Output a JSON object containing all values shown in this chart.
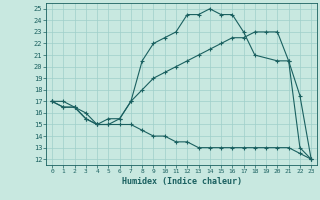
{
  "xlabel": "Humidex (Indice chaleur)",
  "bg_color": "#c8e8e0",
  "grid_color": "#9fcfca",
  "line_color": "#1a6060",
  "xlim": [
    -0.5,
    23.5
  ],
  "ylim": [
    11.5,
    25.5
  ],
  "xticks": [
    0,
    1,
    2,
    3,
    4,
    5,
    6,
    7,
    8,
    9,
    10,
    11,
    12,
    13,
    14,
    15,
    16,
    17,
    18,
    19,
    20,
    21,
    22,
    23
  ],
  "yticks": [
    12,
    13,
    14,
    15,
    16,
    17,
    18,
    19,
    20,
    21,
    22,
    23,
    24,
    25
  ],
  "line1_x": [
    0,
    1,
    2,
    3,
    4,
    5,
    6,
    7,
    8,
    9,
    10,
    11,
    12,
    13,
    14,
    15,
    16,
    17,
    18,
    20,
    21,
    22,
    23
  ],
  "line1_y": [
    17,
    17,
    16.5,
    15.5,
    15,
    15.5,
    15.5,
    17,
    20.5,
    22,
    22.5,
    23,
    24.5,
    24.5,
    25,
    24.5,
    24.5,
    23,
    21,
    20.5,
    20.5,
    13,
    12
  ],
  "line2_x": [
    0,
    1,
    2,
    3,
    4,
    5,
    6,
    7,
    8,
    9,
    10,
    11,
    12,
    13,
    14,
    15,
    16,
    17,
    18,
    19,
    20,
    21,
    22,
    23
  ],
  "line2_y": [
    17,
    16.5,
    16.5,
    16,
    15,
    15,
    15.5,
    17,
    18,
    19,
    19.5,
    20,
    20.5,
    21,
    21.5,
    22,
    22.5,
    22.5,
    23,
    23,
    23,
    20.5,
    17.5,
    12
  ],
  "line3_x": [
    0,
    1,
    2,
    3,
    4,
    5,
    6,
    7,
    8,
    9,
    10,
    11,
    12,
    13,
    14,
    15,
    16,
    17,
    18,
    19,
    20,
    21,
    22,
    23
  ],
  "line3_y": [
    17,
    16.5,
    16.5,
    15.5,
    15,
    15,
    15,
    15,
    14.5,
    14,
    14,
    13.5,
    13.5,
    13,
    13,
    13,
    13,
    13,
    13,
    13,
    13,
    13,
    12.5,
    12
  ]
}
